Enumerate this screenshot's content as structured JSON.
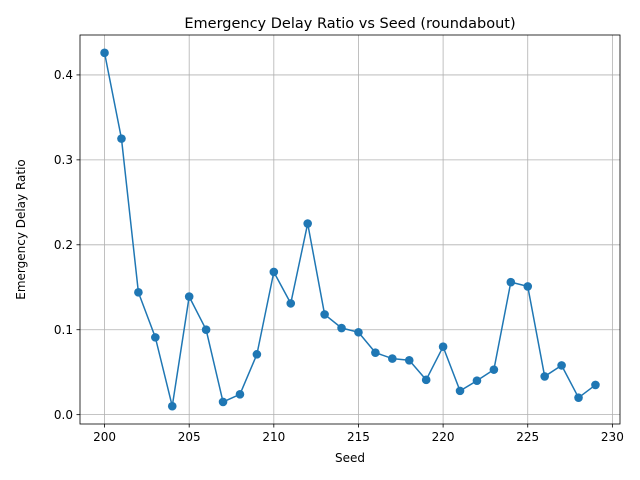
{
  "chart_data": {
    "type": "line",
    "title": "Emergency Delay Ratio vs Seed (roundabout)",
    "xlabel": "Seed",
    "ylabel": "Emergency Delay Ratio",
    "xlim": [
      198.55,
      230.45
    ],
    "ylim": [
      -0.011,
      0.447
    ],
    "xticks": [
      200,
      205,
      210,
      215,
      220,
      225,
      230
    ],
    "yticks": [
      0.0,
      0.1,
      0.2,
      0.3,
      0.4
    ],
    "xtick_labels": [
      "200",
      "205",
      "210",
      "215",
      "220",
      "225",
      "230"
    ],
    "ytick_labels": [
      "0.0",
      "0.1",
      "0.2",
      "0.3",
      "0.4"
    ],
    "grid": true,
    "markers": true,
    "colors": {
      "series": "#1f77b4",
      "grid": "#b0b0b0",
      "axes": "#000000"
    },
    "series": [
      {
        "x": [
          200,
          201,
          202,
          203,
          204,
          205,
          206,
          207,
          208,
          209,
          210,
          211,
          212,
          213,
          214,
          215,
          216,
          217,
          218,
          219,
          220,
          221,
          222,
          223,
          224,
          225,
          226,
          227,
          228,
          229
        ],
        "values": [
          0.426,
          0.325,
          0.144,
          0.091,
          0.01,
          0.139,
          0.1,
          0.015,
          0.024,
          0.071,
          0.168,
          0.131,
          0.225,
          0.118,
          0.102,
          0.097,
          0.073,
          0.066,
          0.064,
          0.041,
          0.08,
          0.028,
          0.04,
          0.053,
          0.156,
          0.151,
          0.045,
          0.058,
          0.02,
          0.035
        ]
      }
    ]
  }
}
